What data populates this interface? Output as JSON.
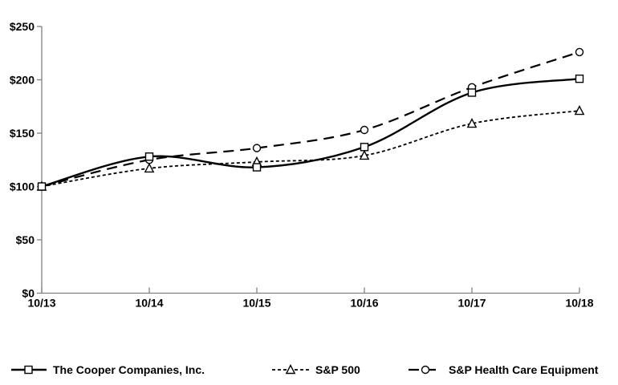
{
  "chart_data": {
    "type": "line",
    "title": "",
    "xlabel": "",
    "ylabel": "",
    "categories": [
      "10/13",
      "10/14",
      "10/15",
      "10/16",
      "10/17",
      "10/18"
    ],
    "series": [
      {
        "name": "The Cooper Companies, Inc.",
        "marker": "square",
        "dash": "solid",
        "color": "#000000",
        "values": [
          100,
          128,
          118,
          137,
          188,
          201
        ]
      },
      {
        "name": "S&P 500",
        "marker": "triangle",
        "dash": "short-dash",
        "color": "#000000",
        "values": [
          100,
          117,
          123,
          129,
          159,
          171
        ]
      },
      {
        "name": "S&P Health Care Equipment",
        "marker": "circle",
        "dash": "long-dash",
        "color": "#000000",
        "values": [
          100,
          125,
          136,
          153,
          193,
          226
        ]
      }
    ],
    "ylim": [
      0,
      250
    ],
    "y_ticks": [
      {
        "label": "$0",
        "value": 0
      },
      {
        "label": "$50",
        "value": 50
      },
      {
        "label": "$100",
        "value": 100
      },
      {
        "label": "$150",
        "value": 150
      },
      {
        "label": "$200",
        "value": 200
      },
      {
        "label": "$250",
        "value": 250
      }
    ],
    "grid": false,
    "smoothed_lines": true,
    "legend_position": "bottom",
    "axis_color": "#808080",
    "line_color": "#000000"
  }
}
